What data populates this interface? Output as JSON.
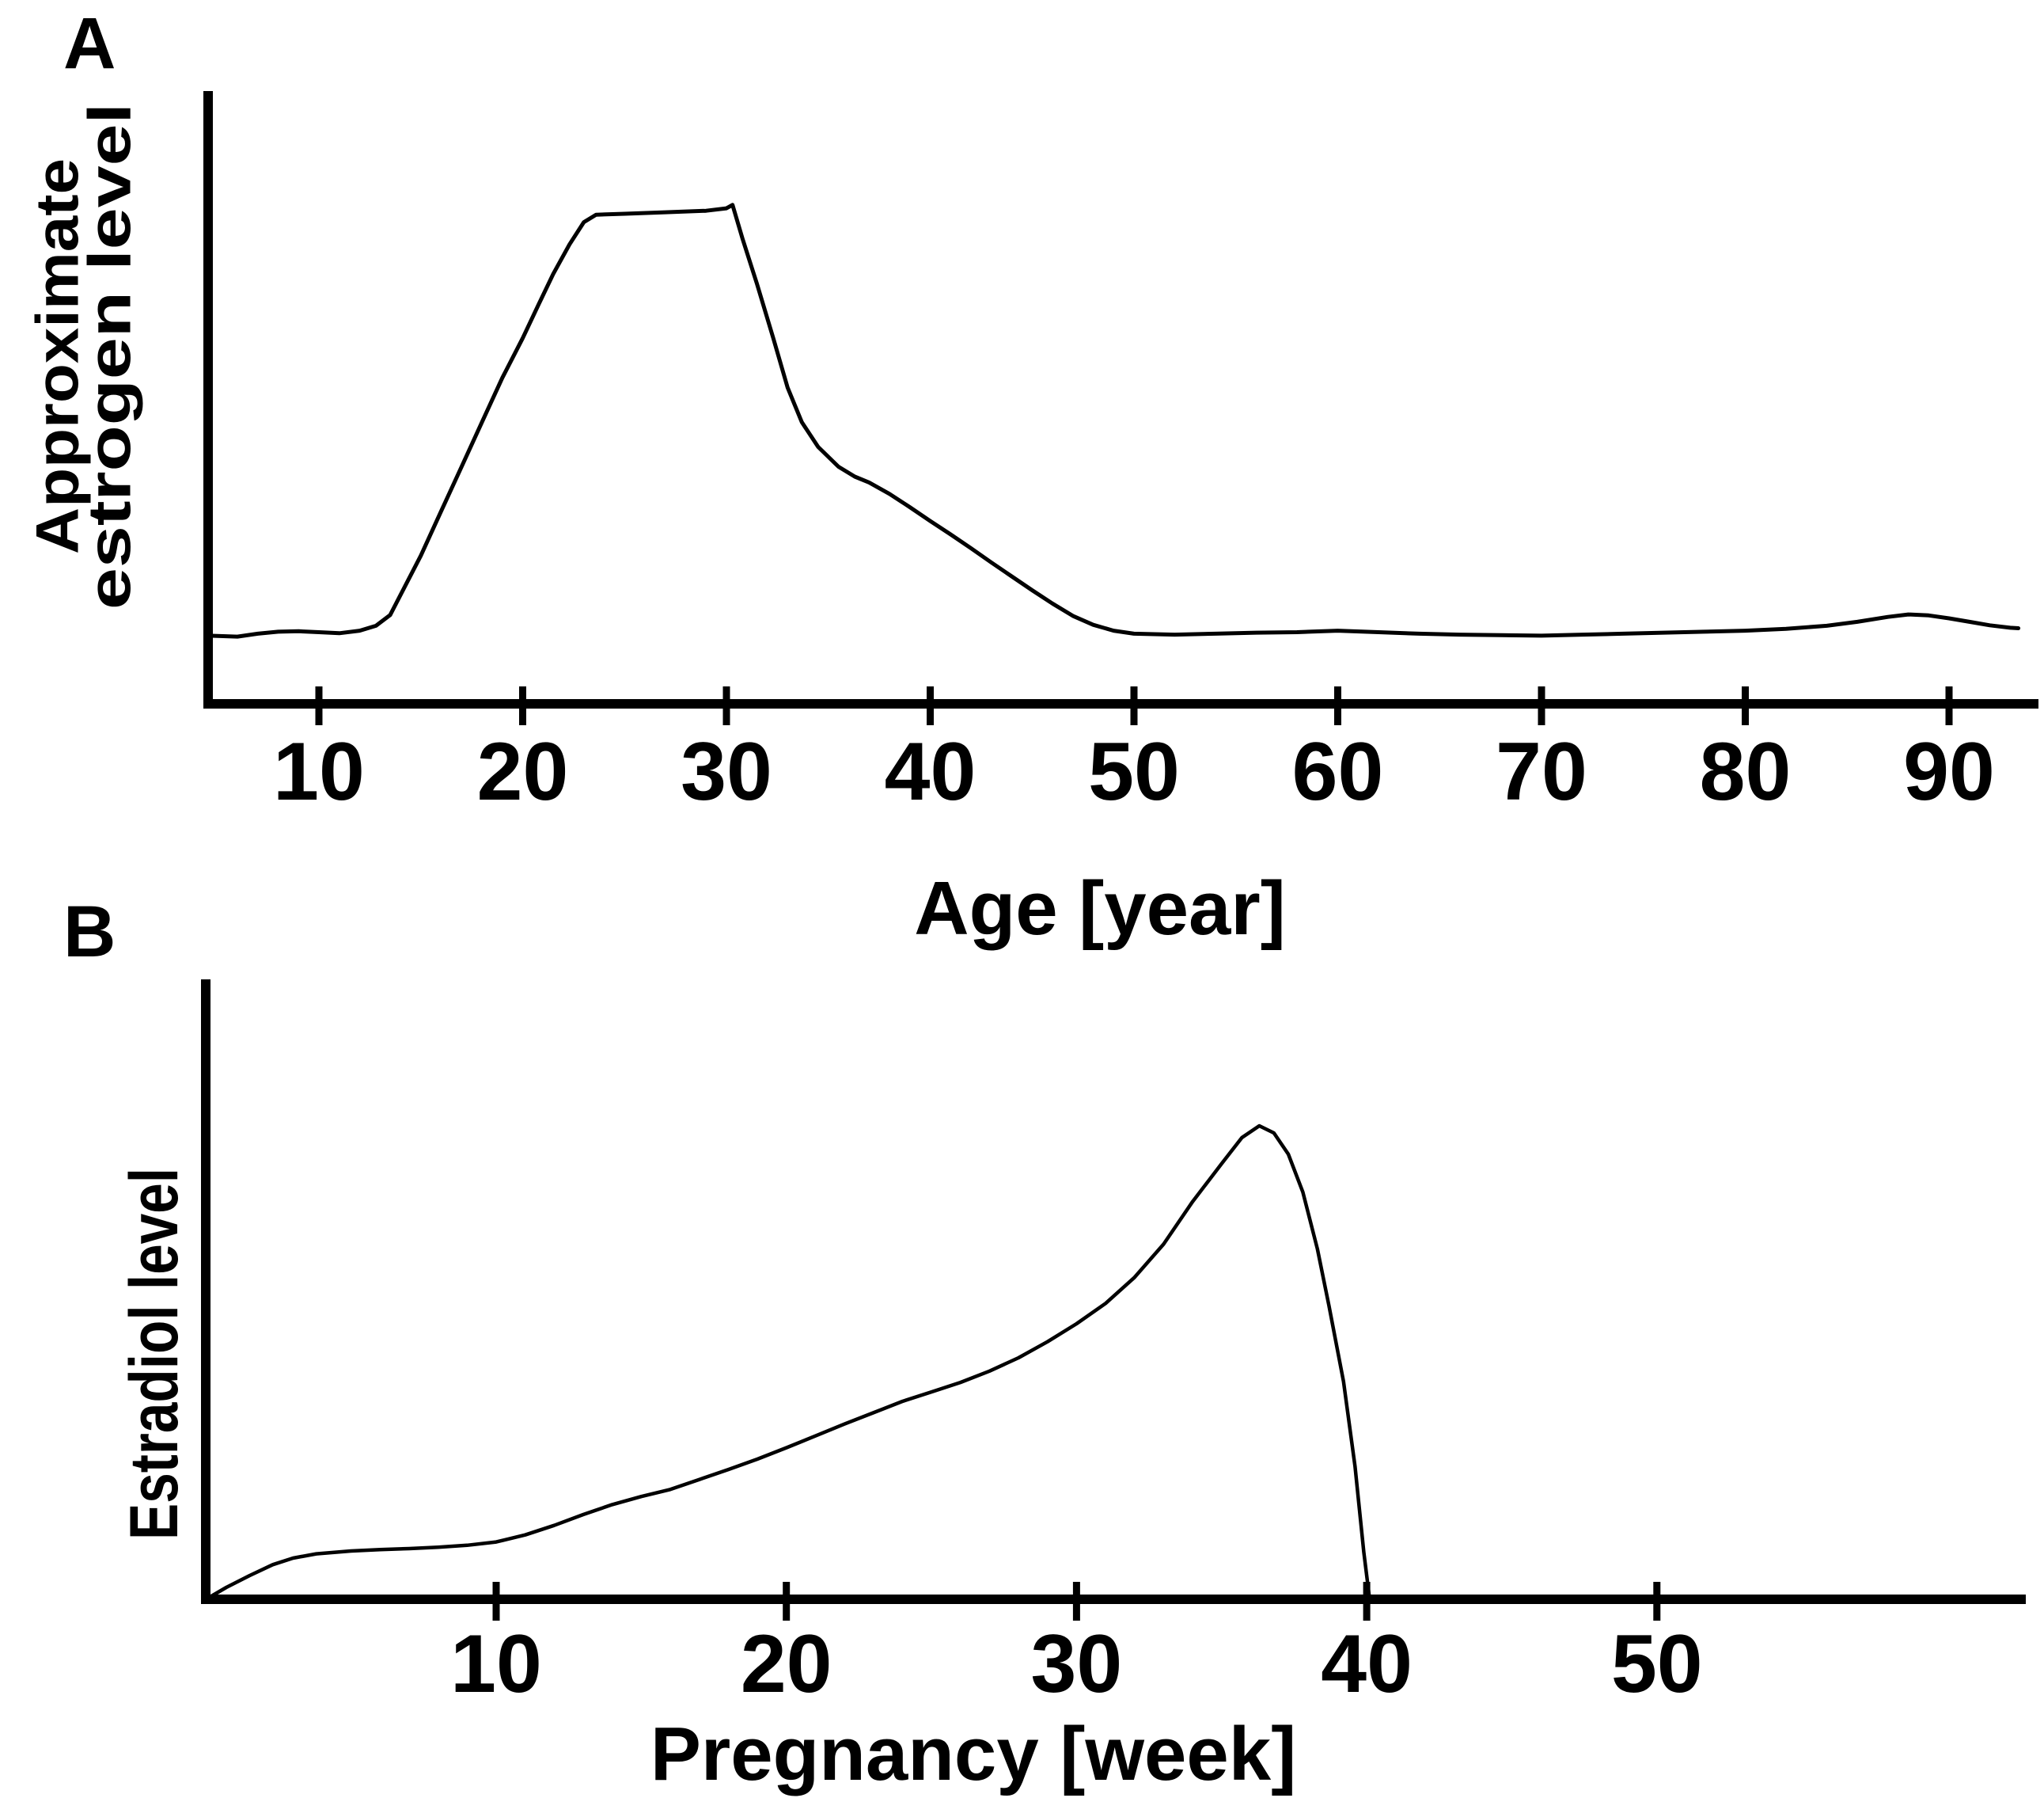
{
  "figure": {
    "background_color": "#ffffff",
    "ink_color": "#000000",
    "description": "Two stacked line charts labeled A and B with unlabeled relative y-axes"
  },
  "chart_data": [
    {
      "type": "line",
      "panel_label": "A",
      "xlabel": "Age [year]",
      "ylabel": "Approximate estrogen level",
      "ylabel_lines": [
        "Approximate",
        "estrogen level"
      ],
      "x_unit": "year",
      "y_unit": "relative level (100 = adult plateau)",
      "xlim": [
        4.6,
        94.5
      ],
      "ylim": [
        0,
        124
      ],
      "x_ticks": [
        10,
        20,
        30,
        40,
        50,
        60,
        70,
        80,
        90
      ],
      "y_ticks": [],
      "grid": false,
      "legend": "none",
      "series": [
        {
          "name": "estrogen-level-vs-age",
          "points": [
            [
              4.6,
              13.8
            ],
            [
              6,
              13.6
            ],
            [
              7,
              14.2
            ],
            [
              8,
              14.6
            ],
            [
              9,
              14.7
            ],
            [
              10,
              14.5
            ],
            [
              11,
              14.3
            ],
            [
              12,
              14.8
            ],
            [
              12.8,
              15.8
            ],
            [
              13.5,
              18
            ],
            [
              14,
              22
            ],
            [
              15,
              30
            ],
            [
              16,
              39
            ],
            [
              17,
              48
            ],
            [
              18,
              57
            ],
            [
              19,
              66
            ],
            [
              20,
              74
            ],
            [
              20.8,
              81
            ],
            [
              21.5,
              87
            ],
            [
              22.3,
              93
            ],
            [
              23,
              97.5
            ],
            [
              23.6,
              99
            ],
            [
              25,
              99.2
            ],
            [
              27,
              99.5
            ],
            [
              29,
              99.8
            ],
            [
              30,
              100.3
            ],
            [
              30.3,
              101
            ],
            [
              30.8,
              94
            ],
            [
              31.5,
              85
            ],
            [
              32.3,
              74
            ],
            [
              33,
              64
            ],
            [
              33.7,
              57
            ],
            [
              34.5,
              52
            ],
            [
              35.5,
              48
            ],
            [
              36.3,
              46
            ],
            [
              37,
              44.8
            ],
            [
              38,
              42.5
            ],
            [
              39,
              39.8
            ],
            [
              40,
              37
            ],
            [
              41,
              34.3
            ],
            [
              42,
              31.5
            ],
            [
              43,
              28.6
            ],
            [
              44,
              25.8
            ],
            [
              45,
              23
            ],
            [
              46,
              20.3
            ],
            [
              47,
              17.8
            ],
            [
              48,
              16
            ],
            [
              49,
              14.8
            ],
            [
              50,
              14.2
            ],
            [
              52,
              14.0
            ],
            [
              54,
              14.2
            ],
            [
              56,
              14.4
            ],
            [
              58,
              14.5
            ],
            [
              60,
              14.8
            ],
            [
              62,
              14.5
            ],
            [
              64,
              14.2
            ],
            [
              66,
              14.0
            ],
            [
              68,
              13.9
            ],
            [
              70,
              13.8
            ],
            [
              72,
              14.0
            ],
            [
              74,
              14.2
            ],
            [
              76,
              14.4
            ],
            [
              78,
              14.6
            ],
            [
              80,
              14.8
            ],
            [
              82,
              15.2
            ],
            [
              84,
              15.8
            ],
            [
              85.5,
              16.6
            ],
            [
              87,
              17.6
            ],
            [
              88,
              18.1
            ],
            [
              89,
              17.9
            ],
            [
              90,
              17.3
            ],
            [
              91,
              16.6
            ],
            [
              92,
              15.9
            ],
            [
              93,
              15.4
            ],
            [
              93.4,
              15.3
            ]
          ]
        }
      ]
    },
    {
      "type": "line",
      "panel_label": "B",
      "xlabel": "Pregnancy [week]",
      "ylabel": "Estradiol level",
      "ylabel_lines": [
        "Estradiol level"
      ],
      "x_unit": "week",
      "y_unit": "relative level (100 = peak near week 36)",
      "xlim": [
        0,
        62.5
      ],
      "ylim": [
        0,
        131
      ],
      "x_ticks": [
        10,
        20,
        30,
        40,
        50
      ],
      "y_ticks": [],
      "grid": false,
      "legend": "none",
      "series": [
        {
          "name": "estradiol-level-vs-pregnancy-week",
          "points": [
            [
              0,
              0
            ],
            [
              0.7,
              2.5
            ],
            [
              1.5,
              5
            ],
            [
              2.3,
              7.3
            ],
            [
              3,
              8.7
            ],
            [
              3.8,
              9.6
            ],
            [
              5,
              10.2
            ],
            [
              6,
              10.5
            ],
            [
              7,
              10.7
            ],
            [
              8,
              11
            ],
            [
              9,
              11.4
            ],
            [
              10,
              12.1
            ],
            [
              11,
              13.6
            ],
            [
              12,
              15.6
            ],
            [
              13,
              17.9
            ],
            [
              14,
              20
            ],
            [
              15,
              21.7
            ],
            [
              16,
              23.2
            ],
            [
              17,
              25.3
            ],
            [
              18,
              27.4
            ],
            [
              19,
              29.6
            ],
            [
              20,
              32
            ],
            [
              21,
              34.5
            ],
            [
              22,
              37
            ],
            [
              23,
              39.4
            ],
            [
              24,
              41.8
            ],
            [
              25,
              43.8
            ],
            [
              26,
              45.8
            ],
            [
              27,
              48.2
            ],
            [
              28,
              51
            ],
            [
              29,
              54.4
            ],
            [
              30,
              58.2
            ],
            [
              31,
              62.5
            ],
            [
              32,
              68
            ],
            [
              33,
              75
            ],
            [
              34,
              84
            ],
            [
              35,
              92
            ],
            [
              35.7,
              97.5
            ],
            [
              36.3,
              100
            ],
            [
              36.8,
              98.5
            ],
            [
              37.3,
              94
            ],
            [
              37.8,
              86
            ],
            [
              38.3,
              74
            ],
            [
              38.7,
              62
            ],
            [
              39.2,
              46
            ],
            [
              39.6,
              28
            ],
            [
              39.9,
              10
            ],
            [
              40.1,
              0
            ]
          ]
        }
      ]
    }
  ]
}
